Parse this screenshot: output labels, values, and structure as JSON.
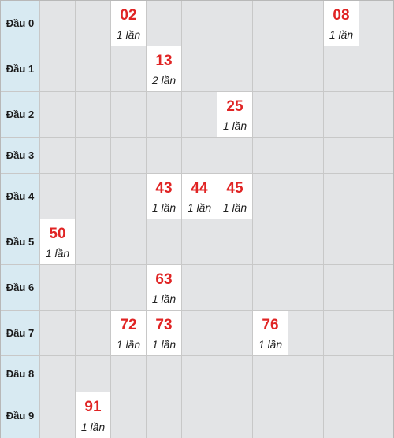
{
  "rows": [
    {
      "label": "Đầu 0",
      "cells": [
        null,
        null,
        {
          "num": "02",
          "count": "1 lần"
        },
        null,
        null,
        null,
        null,
        null,
        {
          "num": "08",
          "count": "1 lần"
        },
        null
      ]
    },
    {
      "label": "Đầu 1",
      "cells": [
        null,
        null,
        null,
        {
          "num": "13",
          "count": "2 lần"
        },
        null,
        null,
        null,
        null,
        null,
        null
      ]
    },
    {
      "label": "Đầu 2",
      "cells": [
        null,
        null,
        null,
        null,
        null,
        {
          "num": "25",
          "count": "1 lần"
        },
        null,
        null,
        null,
        null
      ]
    },
    {
      "label": "Đầu 3",
      "cells": [
        null,
        null,
        null,
        null,
        null,
        null,
        null,
        null,
        null,
        null
      ]
    },
    {
      "label": "Đầu 4",
      "cells": [
        null,
        null,
        null,
        {
          "num": "43",
          "count": "1 lần"
        },
        {
          "num": "44",
          "count": "1 lần"
        },
        {
          "num": "45",
          "count": "1 lần"
        },
        null,
        null,
        null,
        null
      ]
    },
    {
      "label": "Đầu 5",
      "cells": [
        {
          "num": "50",
          "count": "1 lần"
        },
        null,
        null,
        null,
        null,
        null,
        null,
        null,
        null,
        null
      ]
    },
    {
      "label": "Đầu 6",
      "cells": [
        null,
        null,
        null,
        {
          "num": "63",
          "count": "1 lần"
        },
        null,
        null,
        null,
        null,
        null,
        null
      ]
    },
    {
      "label": "Đầu 7",
      "cells": [
        null,
        null,
        {
          "num": "72",
          "count": "1 lần"
        },
        {
          "num": "73",
          "count": "1 lần"
        },
        null,
        null,
        {
          "num": "76",
          "count": "1 lần"
        },
        null,
        null,
        null
      ]
    },
    {
      "label": "Đầu 8",
      "cells": [
        null,
        null,
        null,
        null,
        null,
        null,
        null,
        null,
        null,
        null
      ]
    },
    {
      "label": "Đầu 9",
      "cells": [
        null,
        {
          "num": "91",
          "count": "1 lần"
        },
        null,
        null,
        null,
        null,
        null,
        null,
        null,
        null
      ]
    }
  ]
}
